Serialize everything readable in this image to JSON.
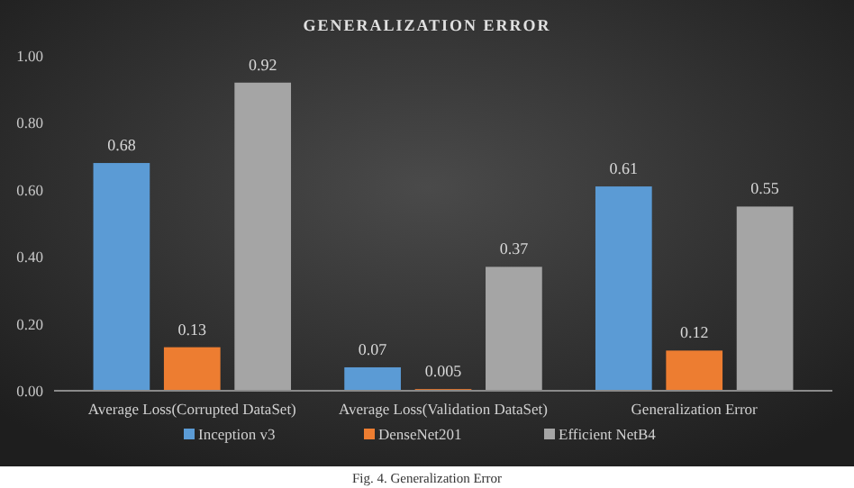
{
  "chart_data": {
    "type": "bar",
    "title": "GENERALIZATION ERROR",
    "categories": [
      "Average Loss(Corrupted DataSet)",
      "Average Loss(Validation DataSet)",
      "Generalization Error"
    ],
    "series": [
      {
        "name": "Inception v3",
        "color": "#5b9bd5",
        "values": [
          0.68,
          0.07,
          0.61
        ]
      },
      {
        "name": "DenseNet201",
        "color": "#ed7d31",
        "values": [
          0.13,
          0.005,
          0.12
        ]
      },
      {
        "name": "Efficient NetB4",
        "color": "#a5a5a5",
        "values": [
          0.92,
          0.37,
          0.55
        ]
      }
    ],
    "ylim": [
      0,
      1
    ],
    "yticks": [
      {
        "value": 0,
        "label": "0.00"
      },
      {
        "value": 0.2,
        "label": "0.20"
      },
      {
        "value": 0.4,
        "label": "0.40"
      },
      {
        "value": 0.6,
        "label": "0.60"
      },
      {
        "value": 0.8,
        "label": "0.80"
      },
      {
        "value": 1,
        "label": "1.00"
      }
    ],
    "grid": false,
    "legend": "bottom",
    "data_labels": true,
    "annotations": [
      "Fig. 4. Generalization Error"
    ]
  }
}
